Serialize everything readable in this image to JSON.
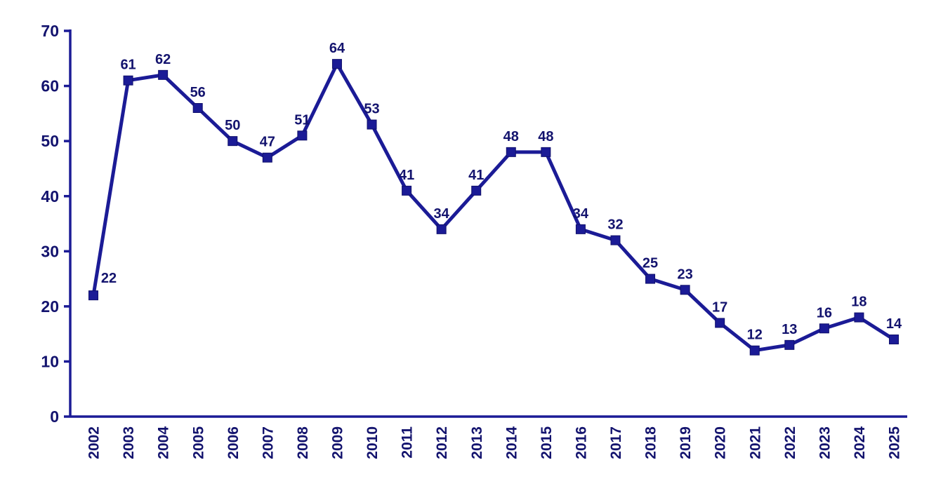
{
  "chart_data": {
    "type": "line",
    "title": "",
    "xlabel": "",
    "ylabel": "",
    "categories": [
      "2002",
      "2003",
      "2004",
      "2005",
      "2006",
      "2007",
      "2008",
      "2009",
      "2010",
      "2011",
      "2012",
      "2013",
      "2014",
      "2015",
      "2016",
      "2017",
      "2018",
      "2019",
      "2020",
      "2021",
      "2022",
      "2023",
      "2024",
      "2025"
    ],
    "values": [
      22,
      61,
      62,
      56,
      50,
      47,
      51,
      64,
      53,
      41,
      34,
      41,
      48,
      48,
      34,
      32,
      25,
      23,
      17,
      12,
      13,
      16,
      18,
      14
    ],
    "data_labels": [
      22,
      61,
      62,
      56,
      50,
      47,
      51,
      64,
      53,
      41,
      34,
      41,
      48,
      48,
      34,
      32,
      25,
      23,
      17,
      12,
      13,
      16,
      18,
      14
    ],
    "ylim": [
      0,
      70
    ],
    "yticks": [
      0,
      10,
      20,
      30,
      40,
      50,
      60,
      70
    ],
    "grid": false,
    "legend_position": "none",
    "marker": "square",
    "x_label_rotation": -90,
    "colors": {
      "line": "#1b1b96",
      "marker_fill": "#1b1b96",
      "marker_edge": "#10106b",
      "value_label": "#13136e",
      "axis_line": "#1b1b96",
      "tick_text": "#13136e",
      "background": "#ffffff"
    }
  }
}
